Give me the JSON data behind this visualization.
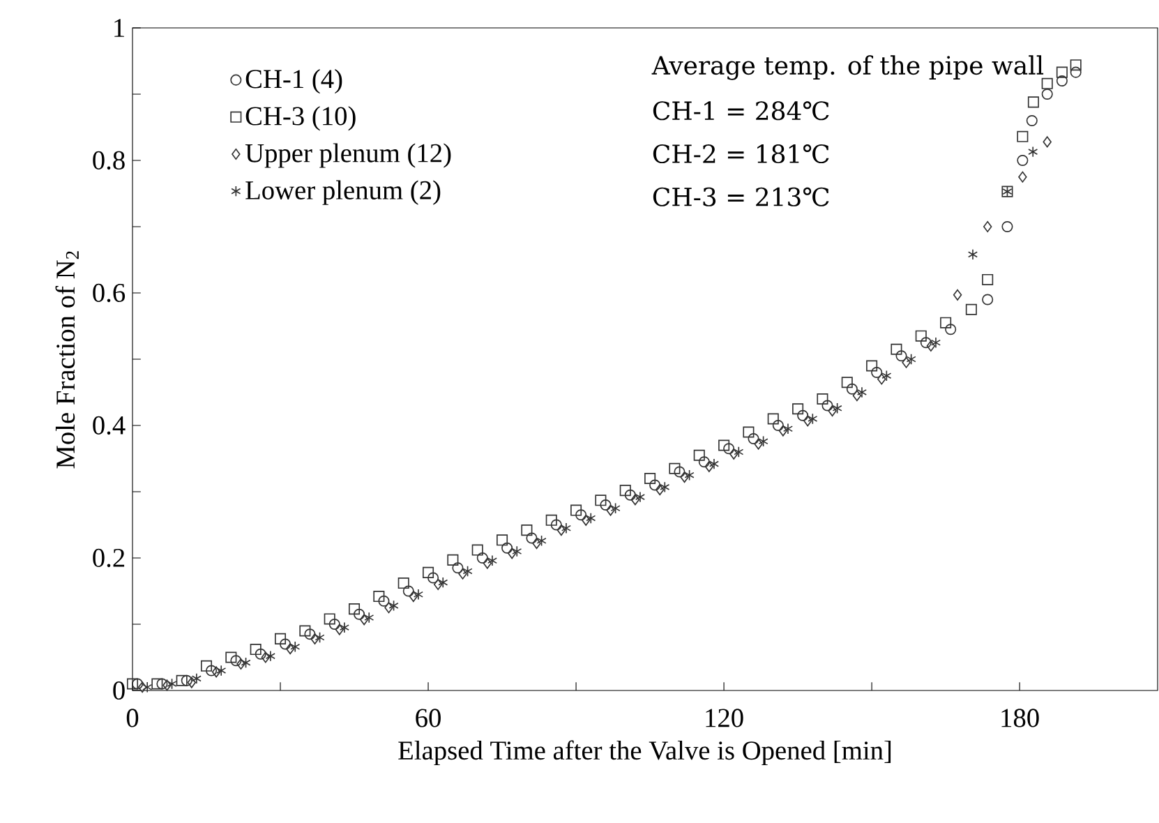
{
  "chart_data": {
    "type": "scatter",
    "xlabel": "Elapsed Time after the Valve is Opened [min]",
    "ylabel": "Mole Fraction of N$_{2}$",
    "xlim": [
      0,
      208
    ],
    "ylim": [
      0,
      1
    ],
    "xticks": [
      0,
      {
        "value": 30,
        "label": null
      },
      60,
      {
        "value": 90,
        "label": null
      },
      120,
      {
        "value": 150,
        "label": null
      },
      180
    ],
    "yticks": [
      0,
      {
        "value": 0.1,
        "label": null
      },
      0.2,
      {
        "value": 0.3,
        "label": null
      },
      0.4,
      {
        "value": 0.5,
        "label": null
      },
      0.6,
      {
        "value": 0.7,
        "label": null
      },
      0.8,
      {
        "value": 0.9,
        "label": null
      },
      1
    ],
    "grid": false,
    "legend": "top left",
    "annotations": [
      "Average temp. of the pipe wall",
      "CH-1 = 284℃",
      "CH-2 = 181℃",
      "CH-3 = 213℃"
    ],
    "series": [
      {
        "name": "CH-1 (4)",
        "color": "#333333",
        "marker": "circle",
        "x": [
          1,
          6,
          11,
          16,
          21,
          26,
          31,
          36,
          41,
          46,
          51,
          56,
          61,
          66,
          71,
          76,
          81,
          86,
          91,
          96,
          101,
          106,
          111,
          116,
          121,
          126,
          131,
          136,
          141,
          146,
          151,
          156,
          161,
          166,
          173.5,
          177.5,
          180.6,
          182.5,
          185.6,
          188.6,
          191.4
        ],
        "values": [
          0.01,
          0.01,
          0.015,
          0.03,
          0.045,
          0.055,
          0.07,
          0.085,
          0.1,
          0.115,
          0.135,
          0.15,
          0.17,
          0.185,
          0.2,
          0.215,
          0.23,
          0.25,
          0.265,
          0.28,
          0.295,
          0.31,
          0.33,
          0.345,
          0.365,
          0.38,
          0.4,
          0.415,
          0.43,
          0.455,
          0.48,
          0.505,
          0.525,
          0.545,
          0.59,
          0.7,
          0.8,
          0.86,
          0.9,
          0.92,
          0.933
        ]
      },
      {
        "name": "CH-3 (10)",
        "color": "#333333",
        "marker": "square",
        "x": [
          0,
          5,
          10,
          15,
          20,
          25,
          30,
          35,
          40,
          45,
          50,
          55,
          60,
          65,
          70,
          75,
          80,
          85,
          90,
          95,
          100,
          105,
          110,
          115,
          120,
          125,
          130,
          135,
          140,
          145,
          150,
          155,
          160,
          165,
          170.2,
          173.5,
          177.5,
          180.6,
          182.8,
          185.6,
          188.6,
          191.4
        ],
        "values": [
          0.01,
          0.01,
          0.015,
          0.037,
          0.05,
          0.062,
          0.078,
          0.09,
          0.108,
          0.123,
          0.142,
          0.162,
          0.178,
          0.197,
          0.212,
          0.227,
          0.242,
          0.257,
          0.272,
          0.287,
          0.302,
          0.32,
          0.335,
          0.355,
          0.37,
          0.39,
          0.41,
          0.425,
          0.44,
          0.465,
          0.49,
          0.515,
          0.535,
          0.555,
          0.575,
          0.62,
          0.753,
          0.836,
          0.888,
          0.916,
          0.933,
          0.944
        ]
      },
      {
        "name": "Upper plenum (12)",
        "color": "#333333",
        "marker": "diamond",
        "x": [
          2,
          7,
          12,
          17,
          22,
          27,
          32,
          37,
          42,
          47,
          52,
          57,
          62,
          67,
          72,
          77,
          82,
          87,
          92,
          97,
          102,
          107,
          112,
          117,
          122,
          127,
          132,
          137,
          142,
          147,
          152,
          157,
          162,
          167.4,
          173.5,
          180.6,
          185.6
        ],
        "values": [
          0.005,
          0.008,
          0.012,
          0.028,
          0.04,
          0.05,
          0.063,
          0.078,
          0.092,
          0.107,
          0.125,
          0.142,
          0.16,
          0.176,
          0.192,
          0.207,
          0.222,
          0.242,
          0.257,
          0.272,
          0.288,
          0.303,
          0.322,
          0.338,
          0.357,
          0.372,
          0.392,
          0.407,
          0.422,
          0.445,
          0.47,
          0.495,
          0.52,
          0.597,
          0.7,
          0.775,
          0.828
        ]
      },
      {
        "name": "Lower plenum (2)",
        "color": "#333333",
        "marker": "cross",
        "x": [
          3,
          8,
          13,
          18,
          23,
          28,
          33,
          38,
          43,
          48,
          53,
          58,
          63,
          68,
          73,
          78,
          83,
          88,
          93,
          98,
          103,
          108,
          113,
          118,
          123,
          128,
          133,
          138,
          143,
          148,
          153,
          158,
          163,
          170.5,
          177.5,
          182.7
        ],
        "values": [
          0.005,
          0.01,
          0.018,
          0.03,
          0.042,
          0.052,
          0.066,
          0.08,
          0.095,
          0.11,
          0.128,
          0.145,
          0.163,
          0.18,
          0.196,
          0.21,
          0.226,
          0.245,
          0.26,
          0.275,
          0.292,
          0.307,
          0.325,
          0.342,
          0.36,
          0.376,
          0.395,
          0.41,
          0.426,
          0.45,
          0.475,
          0.5,
          0.525,
          0.658,
          0.753,
          0.813
        ]
      }
    ]
  }
}
